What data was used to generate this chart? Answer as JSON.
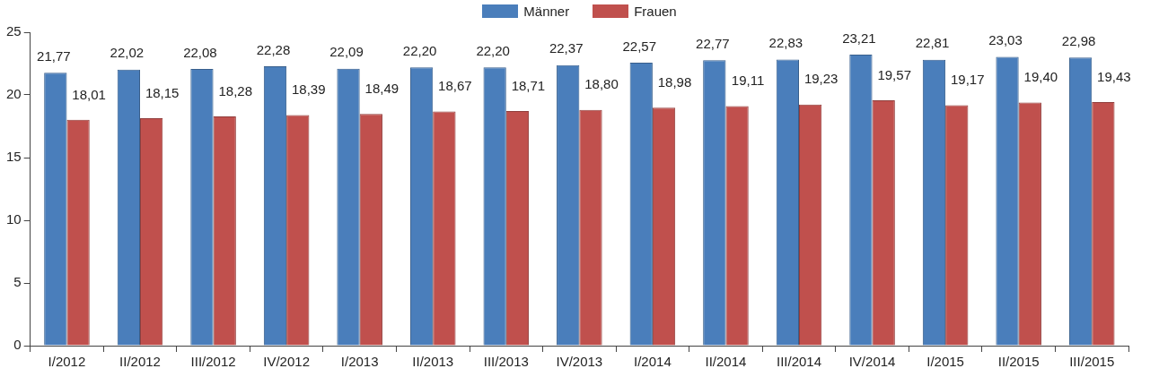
{
  "chart_data": {
    "type": "bar",
    "categories": [
      "I/2012",
      "II/2012",
      "III/2012",
      "IV/2012",
      "I/2013",
      "II/2013",
      "III/2013",
      "IV/2013",
      "I/2014",
      "II/2014",
      "III/2014",
      "IV/2014",
      "I/2015",
      "II/2015",
      "III/2015"
    ],
    "series": [
      {
        "name": "Männer",
        "color": "#4a7ebb",
        "values": [
          21.77,
          22.02,
          22.08,
          22.28,
          22.09,
          22.2,
          22.2,
          22.37,
          22.57,
          22.77,
          22.83,
          23.21,
          22.81,
          23.03,
          22.98
        ],
        "value_labels": [
          "21,77",
          "22,02",
          "22,08",
          "22,28",
          "22,09",
          "22,20",
          "22,20",
          "22,37",
          "22,57",
          "22,77",
          "22,83",
          "23,21",
          "22,81",
          "23,03",
          "22,98"
        ]
      },
      {
        "name": "Frauen",
        "color": "#c0504d",
        "values": [
          18.01,
          18.15,
          18.28,
          18.39,
          18.49,
          18.67,
          18.71,
          18.8,
          18.98,
          19.11,
          19.23,
          19.57,
          19.17,
          19.4,
          19.43
        ],
        "value_labels": [
          "18,01",
          "18,15",
          "18,28",
          "18,39",
          "18,49",
          "18,67",
          "18,71",
          "18,80",
          "18,98",
          "19,11",
          "19,23",
          "19,57",
          "19,17",
          "19,40",
          "19,43"
        ]
      }
    ],
    "ylim": [
      0,
      25
    ],
    "yticks": [
      0,
      5,
      10,
      15,
      20,
      25
    ],
    "grid": false,
    "legend": "top"
  }
}
